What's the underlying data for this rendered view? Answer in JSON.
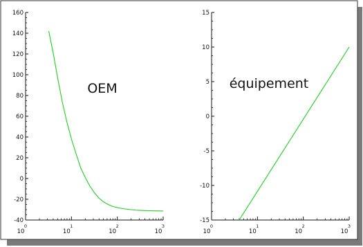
{
  "chart_data": [
    {
      "type": "line",
      "xscale": "log",
      "xlim": [
        1,
        1000
      ],
      "ylim": [
        -40,
        160
      ],
      "xticks": [
        {
          "base": "10",
          "exp": "0"
        },
        {
          "base": "10",
          "exp": "1"
        },
        {
          "base": "10",
          "exp": "2"
        },
        {
          "base": "10",
          "exp": "3"
        }
      ],
      "yticks": [
        "160",
        "140",
        "120",
        "100",
        "80",
        "60",
        "40",
        "20",
        "0",
        "-20",
        "-40"
      ],
      "annotation": "OEM",
      "line_color": "#22cc22",
      "series": [
        {
          "x": [
            3.2,
            4,
            5,
            6.3,
            8,
            10,
            13,
            16,
            20,
            25,
            32,
            40,
            50,
            63,
            80,
            100,
            130,
            160,
            200,
            250,
            320,
            400,
            500,
            630,
            800,
            1000
          ],
          "y": [
            142,
            121,
            97,
            74,
            54,
            38,
            22,
            10,
            1,
            -7,
            -14,
            -19,
            -22.5,
            -25,
            -27,
            -28,
            -29,
            -29.5,
            -30,
            -30.5,
            -30.7,
            -30.9,
            -31,
            -31.1,
            -31.2,
            -31.3
          ]
        }
      ]
    },
    {
      "type": "line",
      "xscale": "log",
      "xlim": [
        1,
        1000
      ],
      "ylim": [
        -15,
        15
      ],
      "xticks": [
        {
          "base": "10",
          "exp": "0"
        },
        {
          "base": "10",
          "exp": "1"
        },
        {
          "base": "10",
          "exp": "2"
        },
        {
          "base": "10",
          "exp": "3"
        }
      ],
      "yticks": [
        "15",
        "10",
        "5",
        "0",
        "-5",
        "-10",
        "-15"
      ],
      "annotation": "équipement",
      "line_color": "#22cc22",
      "series": [
        {
          "x": [
            4,
            1000
          ],
          "y": [
            -15,
            10
          ]
        }
      ]
    }
  ]
}
